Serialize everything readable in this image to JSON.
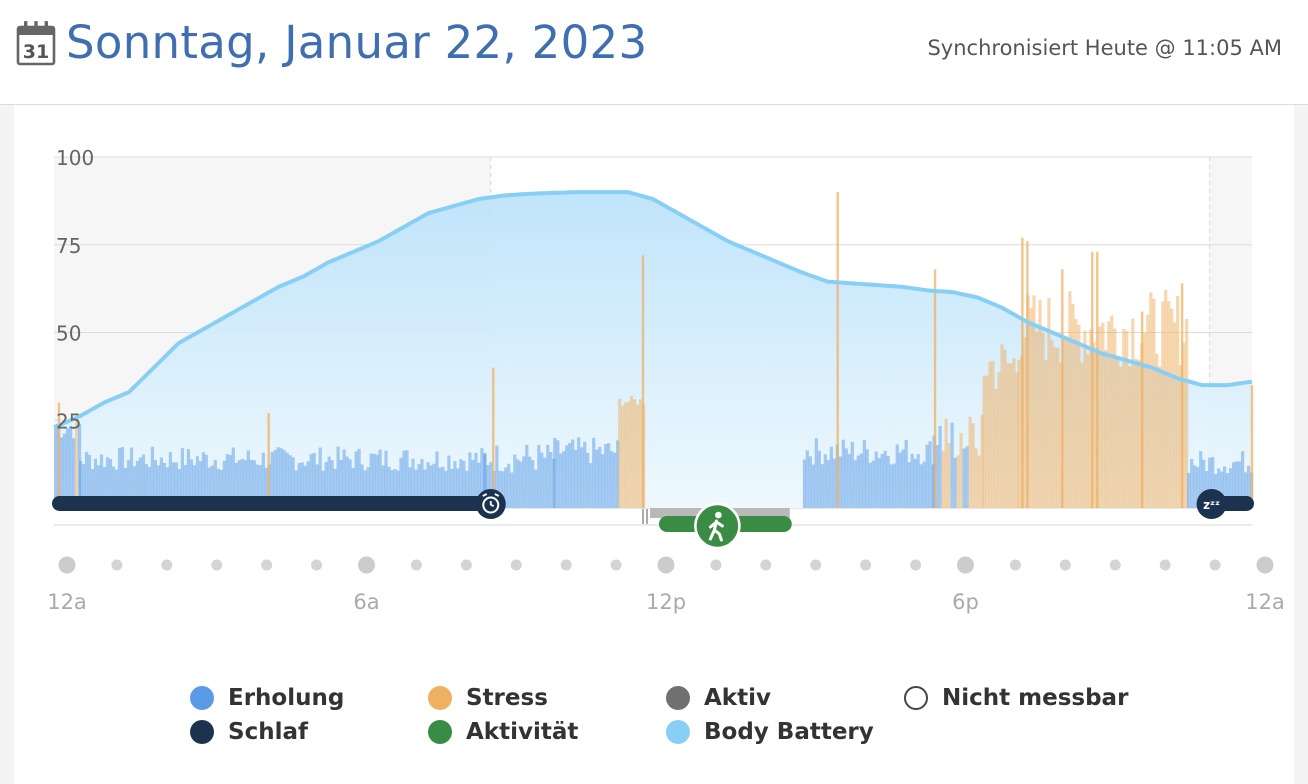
{
  "header": {
    "title": "Sonntag, Januar 22, 2023",
    "calendar_day": "31",
    "sync_status": "Synchronisiert Heute @ 11:05 AM",
    "icons": [
      "calendar-icon"
    ]
  },
  "legend": [
    {
      "label": "Erholung",
      "color": "#5a9be6",
      "filled": true
    },
    {
      "label": "Stress",
      "color": "#f0b062",
      "filled": true
    },
    {
      "label": "Aktiv",
      "color": "#707070",
      "filled": true
    },
    {
      "label": "Nicht messbar",
      "color": "#ffffff",
      "filled": false
    },
    {
      "label": "Schlaf",
      "color": "#1c3350",
      "filled": true
    },
    {
      "label": "Aktivität",
      "color": "#3a8c45",
      "filled": true
    },
    {
      "label": "Body Battery",
      "color": "#88cff5",
      "filled": true
    }
  ],
  "chart_data": {
    "type": "area",
    "x_unit": "hours since midnight",
    "xlim": [
      0,
      24
    ],
    "ylim": [
      0,
      100
    ],
    "y_ticks": [
      25,
      50,
      75,
      100
    ],
    "y_tick_labels": [
      "25",
      "50",
      "75",
      "100"
    ],
    "x_ticks": [
      0,
      6,
      12,
      18,
      24
    ],
    "x_tick_labels": [
      "12a",
      "6a",
      "12p",
      "6p",
      "12a"
    ],
    "grid": true,
    "body_battery": {
      "x": [
        0,
        0.5,
        1.0,
        1.5,
        2.0,
        2.5,
        3.0,
        3.5,
        4.0,
        4.5,
        5.0,
        5.5,
        6.0,
        6.5,
        7.0,
        7.5,
        8.0,
        8.5,
        9.0,
        9.5,
        10.0,
        10.5,
        11.0,
        11.5,
        12.0,
        12.5,
        13.0,
        13.5,
        14.0,
        14.5,
        15.0,
        15.5,
        16.0,
        16.5,
        17.0,
        17.5,
        18.0,
        18.5,
        19.0,
        19.5,
        20.0,
        20.5,
        21.0,
        21.5,
        22.0,
        22.5,
        23.0,
        23.5,
        24.0
      ],
      "y": [
        23,
        26,
        30,
        33,
        40,
        47,
        51,
        55,
        59,
        63,
        66,
        70,
        73,
        76,
        80,
        84,
        86,
        88,
        89,
        89.5,
        89.8,
        90,
        90,
        90,
        88,
        84,
        80,
        76,
        73,
        70,
        67,
        64.5,
        64,
        63.5,
        63,
        62,
        61.5,
        60,
        57,
        53,
        50,
        47,
        44,
        42,
        40,
        37,
        35,
        35,
        36
      ],
      "color": "#88cff5"
    },
    "stress_seed": 7,
    "stress_segments": [
      {
        "from": 0.0,
        "to": 0.5,
        "base": 22,
        "amp": 8,
        "type": "stress"
      },
      {
        "from": 0.5,
        "to": 8.6,
        "base": 13,
        "amp": 7,
        "type": "rest"
      },
      {
        "from": 8.6,
        "to": 10.0,
        "base": 13,
        "amp": 9,
        "type": "rest"
      },
      {
        "from": 10.0,
        "to": 11.3,
        "base": 15,
        "amp": 8,
        "type": "rest"
      },
      {
        "from": 11.3,
        "to": 11.8,
        "base": 30,
        "amp": 3,
        "type": "stress"
      },
      {
        "from": 15.0,
        "to": 17.6,
        "base": 15,
        "amp": 8,
        "type": "rest"
      },
      {
        "from": 17.6,
        "to": 18.6,
        "base": 18,
        "amp": 14,
        "type": "mixed"
      },
      {
        "from": 18.6,
        "to": 19.3,
        "base": 38,
        "amp": 18,
        "type": "stress"
      },
      {
        "from": 19.3,
        "to": 22.7,
        "base": 48,
        "amp": 22,
        "type": "stress"
      },
      {
        "from": 22.7,
        "to": 24.0,
        "base": 12,
        "amp": 7,
        "type": "rest"
      }
    ],
    "stress_spikes": [
      {
        "x": 0.1,
        "y": 30
      },
      {
        "x": 4.3,
        "y": 27
      },
      {
        "x": 8.8,
        "y": 40
      },
      {
        "x": 11.8,
        "y": 72
      },
      {
        "x": 15.7,
        "y": 90
      },
      {
        "x": 17.65,
        "y": 68
      },
      {
        "x": 19.4,
        "y": 77
      },
      {
        "x": 19.5,
        "y": 76
      },
      {
        "x": 20.2,
        "y": 68
      },
      {
        "x": 20.8,
        "y": 73
      },
      {
        "x": 20.9,
        "y": 73
      },
      {
        "x": 21.8,
        "y": 56
      },
      {
        "x": 22.6,
        "y": 64
      },
      {
        "x": 24.0,
        "y": 35
      }
    ],
    "activity_gap": [
      12.0,
      15.0
    ],
    "sleep": {
      "from": 0,
      "to": 8.75,
      "end_icon": "alarm-clock-icon"
    },
    "sleep_evening": {
      "from": 23.15,
      "to": 24.0,
      "start_icon": "sleep-zzz-icon"
    },
    "active_band": {
      "from": 11.9,
      "to": 14.7
    },
    "activity": {
      "from": 12.2,
      "to": 14.7,
      "icon": "walking-person-icon"
    }
  }
}
